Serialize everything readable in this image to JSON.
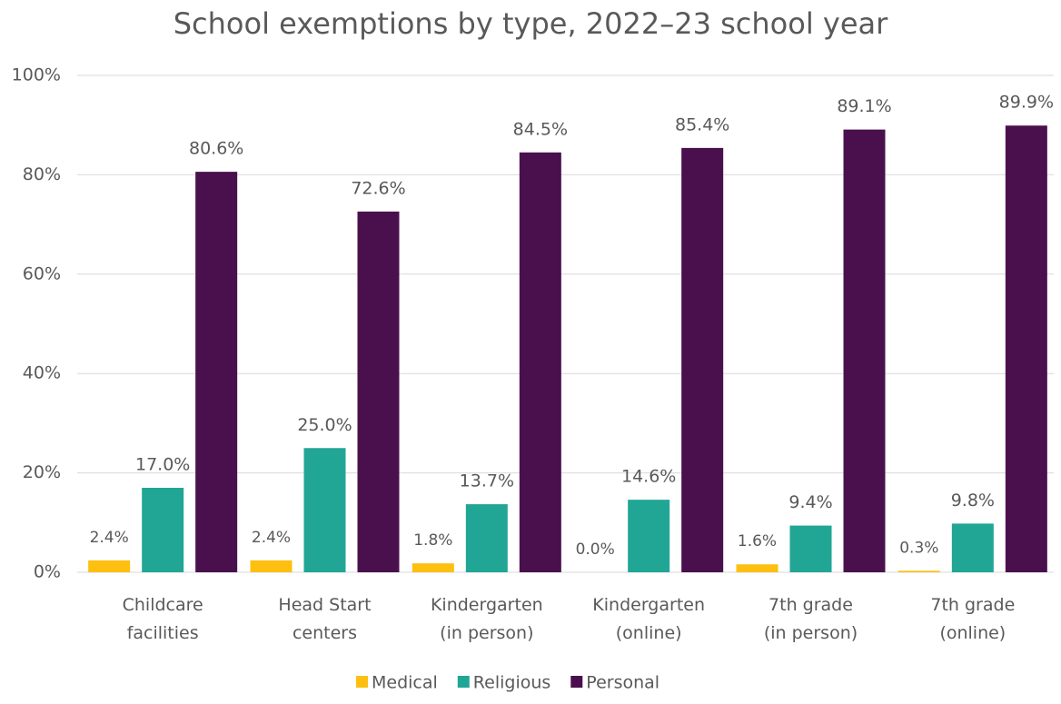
{
  "chart_data": {
    "type": "bar",
    "title": "School exemptions by type, 2022–23 school year",
    "categories": [
      "Childcare\nfacilities",
      "Head Start\ncenters",
      "Kindergarten\n(in person)",
      "Kindergarten\n(online)",
      "7th grade\n(in person)",
      "7th grade\n(online)"
    ],
    "series": [
      {
        "name": "Medical",
        "color": "#fdc010",
        "values": [
          2.4,
          2.4,
          1.8,
          0.0,
          1.6,
          0.3
        ],
        "value_labels": [
          "2.4%",
          "2.4%",
          "1.8%",
          "0.0%",
          "1.6%",
          "0.3%"
        ]
      },
      {
        "name": "Religious",
        "color": "#21a695",
        "values": [
          17.0,
          25.0,
          13.7,
          14.6,
          9.4,
          9.8
        ],
        "value_labels": [
          "17.0%",
          "25.0%",
          "13.7%",
          "14.6%",
          "9.4%",
          "9.8%"
        ]
      },
      {
        "name": "Personal",
        "color": "#4a104d",
        "values": [
          80.6,
          72.6,
          84.5,
          85.4,
          89.1,
          89.9
        ],
        "value_labels": [
          "80.6%",
          "72.6%",
          "84.5%",
          "85.4%",
          "89.1%",
          "89.9%"
        ]
      }
    ],
    "ylim": [
      0,
      100
    ],
    "yticks": [
      {
        "value": 0,
        "label": "0%"
      },
      {
        "value": 20,
        "label": "20%"
      },
      {
        "value": 40,
        "label": "40%"
      },
      {
        "value": 60,
        "label": "60%"
      },
      {
        "value": 80,
        "label": "80%"
      },
      {
        "value": 100,
        "label": "100%"
      }
    ],
    "grid": true,
    "legend": "bottom"
  }
}
